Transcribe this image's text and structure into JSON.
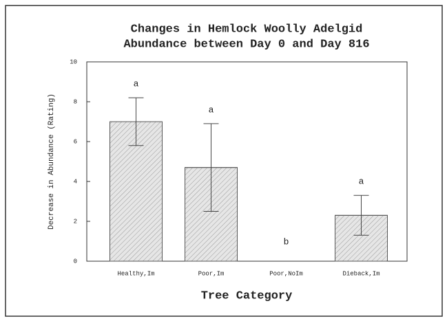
{
  "chart_data": {
    "type": "bar",
    "title": [
      "Changes in Hemlock Woolly Adelgid",
      "Abundance between Day 0 and Day 816"
    ],
    "xlabel": "Tree Category",
    "ylabel": "Decrease in Abundance (Rating)",
    "categories": [
      "Healthy,Im",
      "Poor,Im",
      "Poor,NoIm",
      "Dieback,Im"
    ],
    "values": [
      7.0,
      4.7,
      0,
      2.3
    ],
    "errors": [
      1.2,
      2.2,
      null,
      1.0
    ],
    "group_labels": [
      "a",
      "a",
      "b",
      "a"
    ],
    "color": "#e6e6e6",
    "ylim": [
      0,
      10
    ],
    "yticks": [
      0,
      2,
      4,
      6,
      8,
      10
    ]
  }
}
